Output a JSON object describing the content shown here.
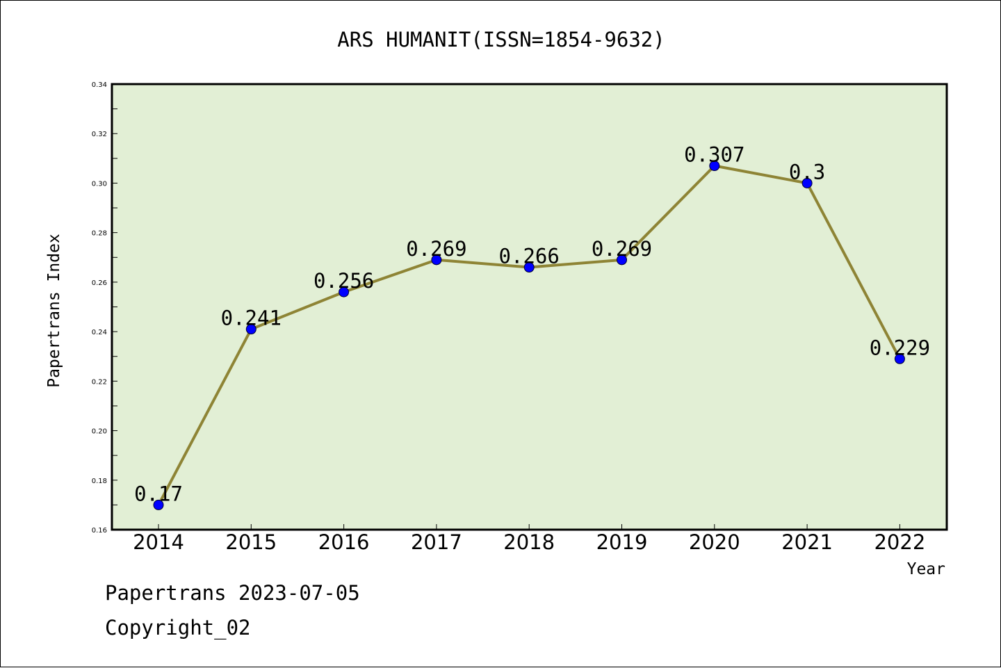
{
  "chart_data": {
    "type": "line",
    "title": "ARS HUMANIT(ISSN=1854-9632)",
    "xlabel": "Year",
    "ylabel": "Papertrans Index",
    "categories": [
      "2014",
      "2015",
      "2016",
      "2017",
      "2018",
      "2019",
      "2020",
      "2021",
      "2022"
    ],
    "series": [
      {
        "values": [
          0.17,
          0.241,
          0.256,
          0.269,
          0.266,
          0.269,
          0.307,
          0.3,
          0.229
        ],
        "data_labels": [
          "0.17",
          "0.241",
          "0.256",
          "0.269",
          "0.266",
          "0.269",
          "0.307",
          "0.3",
          "0.229"
        ]
      }
    ],
    "ylim": [
      0.16,
      0.34
    ],
    "yticks": [
      "0.16",
      "0.18",
      "0.20",
      "0.22",
      "0.24",
      "0.26",
      "0.28",
      "0.30",
      "0.32",
      "0.34"
    ],
    "grid": false,
    "colors": {
      "plot_background": "#e2efd5",
      "line": "#8e8435",
      "marker": "#0000ff"
    }
  },
  "footer": {
    "date_line": "Papertrans 2023-07-05",
    "copyright": "Copyright_02"
  }
}
